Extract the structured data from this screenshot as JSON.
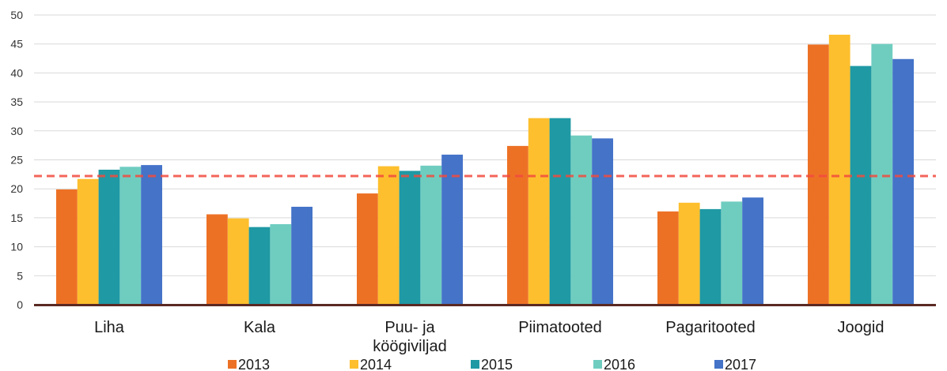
{
  "chart_data": {
    "type": "bar",
    "title": "",
    "xlabel": "",
    "ylabel": "",
    "ylim": [
      0,
      50
    ],
    "yticks": [
      "0",
      "5",
      "10",
      "15",
      "20",
      "25",
      "30",
      "35",
      "40",
      "45",
      "50"
    ],
    "grid": true,
    "legend_position": "bottom",
    "categories": [
      "Liha",
      "Kala",
      "Puu- ja köögiviljad",
      "Piimatooted",
      "Pagaritooted",
      "Joogid"
    ],
    "category_label_lines": [
      [
        "Liha"
      ],
      [
        "Kala"
      ],
      [
        "Puu- ja",
        "köögiviljad"
      ],
      [
        "Piimatooted"
      ],
      [
        "Pagaritooted"
      ],
      [
        "Joogid"
      ]
    ],
    "series": [
      {
        "name": "2013",
        "color": "#ED7125",
        "values": [
          19.9,
          15.6,
          19.2,
          27.4,
          16.1,
          44.9
        ]
      },
      {
        "name": "2014",
        "color": "#FDBF2D",
        "values": [
          21.7,
          14.9,
          23.9,
          32.2,
          17.6,
          46.6
        ]
      },
      {
        "name": "2015",
        "color": "#1F99A4",
        "values": [
          23.3,
          13.4,
          23.1,
          32.2,
          16.5,
          41.2
        ]
      },
      {
        "name": "2016",
        "color": "#6FCDC0",
        "values": [
          23.8,
          13.9,
          24.0,
          29.2,
          17.8,
          45.0
        ]
      },
      {
        "name": "2017",
        "color": "#4473C8",
        "values": [
          24.1,
          16.9,
          25.9,
          28.7,
          18.5,
          42.4
        ]
      }
    ],
    "reference_line": {
      "value": 22.2,
      "style": "dashed",
      "color": "#F24B3E"
    }
  }
}
